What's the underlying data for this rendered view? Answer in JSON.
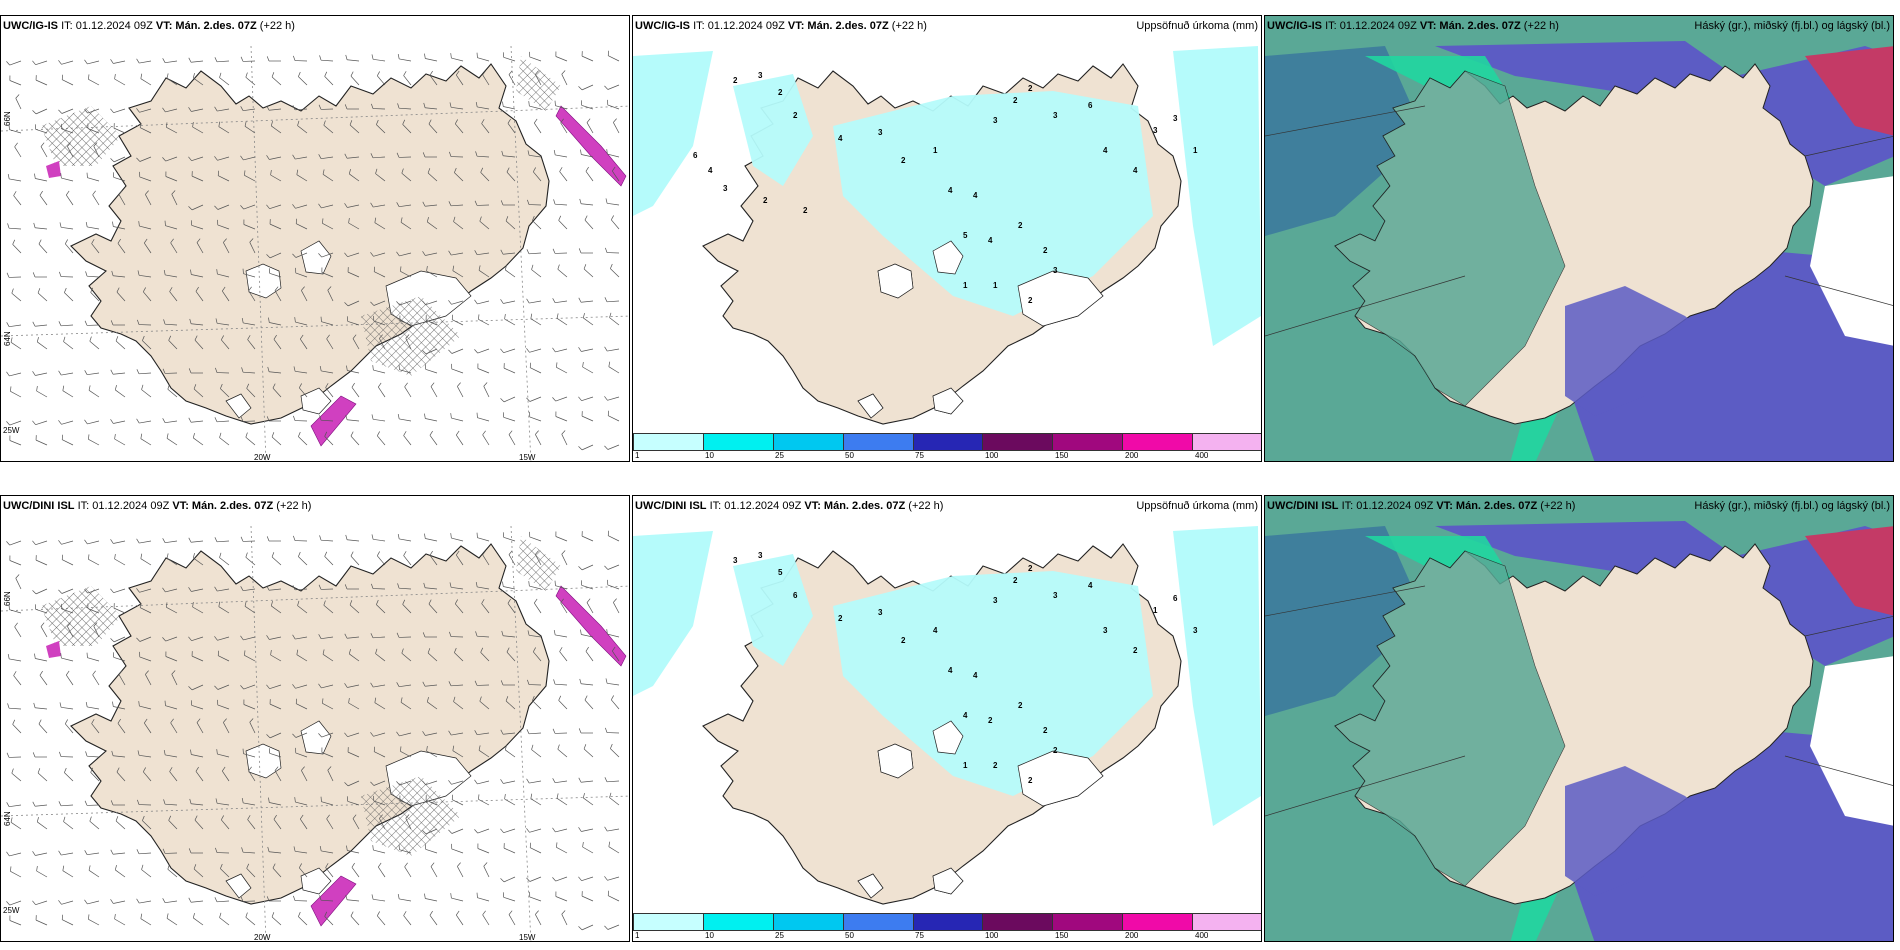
{
  "colors": {
    "land": "#efe2d2",
    "sea": "#ffffff",
    "precip_light": "#b5fbfb",
    "cloud_high": "#5c5cc4",
    "cloud_mid": "#7a8ec8",
    "cloud_low": "#5aa896",
    "cloud_green": "#20d6a0",
    "cloud_red": "#c43a66"
  },
  "rows": [
    {
      "model": "UWC/IG-IS",
      "it": "IT: 01.12.2024 09Z",
      "vt": "VT: Mán. 2.des. 07Z",
      "lead": "(+22 h)",
      "precip_numbers": [
        "2",
        "3",
        "2",
        "2",
        "4",
        "3",
        "2",
        "1",
        "4",
        "4",
        "3",
        "2",
        "2",
        "3",
        "6",
        "4",
        "4",
        "3",
        "3",
        "1",
        "5",
        "4",
        "2",
        "2",
        "1",
        "1",
        "2",
        "3",
        "6",
        "4",
        "3",
        "2",
        "2"
      ]
    },
    {
      "model": "UWC/DINI ISL",
      "it": "IT: 01.12.2024 09Z",
      "vt": "VT: Mán. 2.des. 07Z",
      "lead": "(+22 h)",
      "precip_numbers": [
        "3",
        "3",
        "5",
        "6",
        "2",
        "3",
        "2",
        "4",
        "4",
        "4",
        "3",
        "2",
        "2",
        "3",
        "4",
        "3",
        "2",
        "1",
        "6",
        "3",
        "4",
        "2",
        "2",
        "2",
        "1",
        "2",
        "2",
        "2"
      ]
    }
  ],
  "titles": {
    "precip": "Uppsöfnuð úrkoma (mm)",
    "clouds": "Háský (gr.), miðský (fj.bl.) og lágský (bl.)"
  },
  "axes": {
    "lat_labels": [
      "66N",
      "64N"
    ],
    "lon_labels": [
      "25W",
      "20W",
      "15W"
    ]
  },
  "colorbar": {
    "ticks": [
      "1",
      "10",
      "25",
      "50",
      "75",
      "100",
      "150",
      "200",
      "400"
    ],
    "colors": [
      "#c6ffff",
      "#00f0f0",
      "#00c8f0",
      "#3d7cf0",
      "#2626b4",
      "#6b0a5e",
      "#a0087e",
      "#f00aa8",
      "#f4b2f0"
    ]
  }
}
